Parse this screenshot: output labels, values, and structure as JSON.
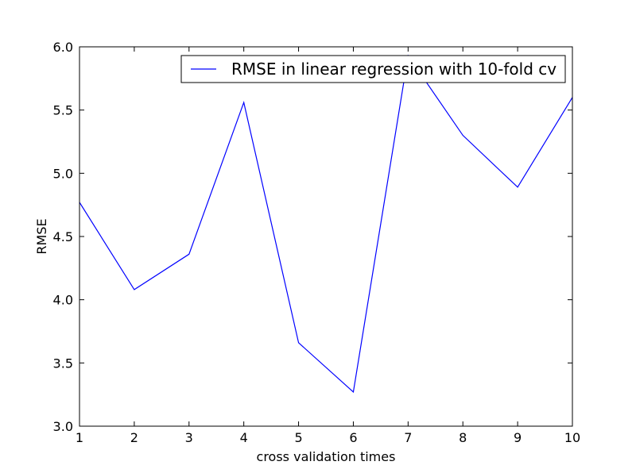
{
  "chart_data": {
    "type": "line",
    "title": "",
    "xlabel": "cross validation times",
    "ylabel": "RMSE",
    "xlim": [
      1,
      10
    ],
    "ylim": [
      3.0,
      6.0
    ],
    "x_ticks": [
      "1",
      "2",
      "3",
      "4",
      "5",
      "6",
      "7",
      "8",
      "9",
      "10"
    ],
    "y_ticks": [
      "3.0",
      "3.5",
      "4.0",
      "4.5",
      "5.0",
      "5.5",
      "6.0"
    ],
    "grid": false,
    "legend_position": "top-right",
    "series": [
      {
        "name": "RMSE in linear regression with 10-fold cv",
        "color": "#0000ff",
        "x": [
          1,
          2,
          3,
          4,
          5,
          6,
          7,
          8,
          9,
          10
        ],
        "values": [
          4.77,
          4.08,
          4.36,
          5.56,
          3.66,
          3.27,
          5.93,
          5.3,
          4.89,
          5.6
        ]
      }
    ]
  }
}
